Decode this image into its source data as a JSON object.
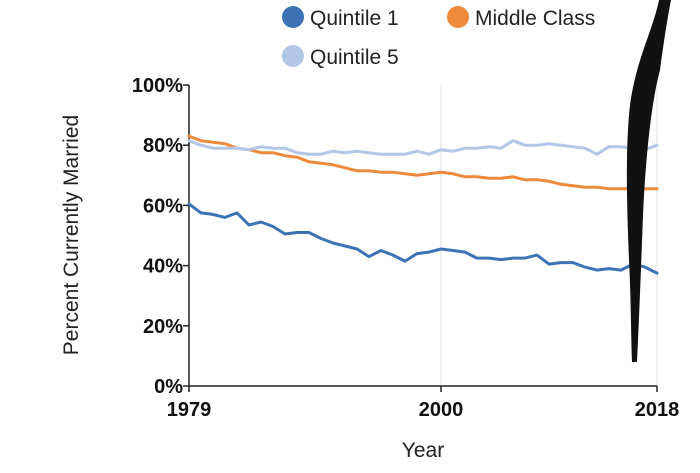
{
  "chart_data": {
    "type": "line",
    "xlabel": "Year",
    "ylabel": "Percent Currently Married",
    "xlim": [
      1979,
      2018
    ],
    "ylim": [
      0,
      100
    ],
    "x_ticks": [
      "1979",
      "2000",
      "2018"
    ],
    "y_ticks": [
      "0%",
      "20%",
      "40%",
      "60%",
      "80%",
      "100%"
    ],
    "grid": "vertical",
    "legend_position": "top",
    "x": [
      1979,
      1980,
      1981,
      1982,
      1983,
      1984,
      1985,
      1986,
      1987,
      1988,
      1989,
      1990,
      1991,
      1992,
      1993,
      1994,
      1995,
      1996,
      1997,
      1998,
      1999,
      2000,
      2001,
      2002,
      2003,
      2004,
      2005,
      2006,
      2007,
      2008,
      2009,
      2010,
      2011,
      2012,
      2013,
      2014,
      2015,
      2016,
      2017,
      2018
    ],
    "series": [
      {
        "name": "Quintile 1",
        "color": "#3d72b4",
        "values": [
          60.5,
          57.5,
          57,
          56,
          57.5,
          53.5,
          54.5,
          53,
          50.5,
          51,
          51,
          49,
          47.5,
          46.5,
          45.5,
          43,
          45,
          43.5,
          41.5,
          44,
          44.5,
          45.5,
          45,
          44.5,
          42.5,
          42.5,
          42,
          42.5,
          42.5,
          43.5,
          40.5,
          41,
          41,
          39.5,
          38.5,
          39,
          38.5,
          40.5,
          39.5,
          37.5
        ]
      },
      {
        "name": "Middle Class",
        "color": "#ee8a3c",
        "values": [
          83,
          81.5,
          81,
          80.5,
          79,
          78.5,
          77.5,
          77.5,
          76.5,
          76,
          74.5,
          74,
          73.5,
          72.5,
          71.5,
          71.5,
          71,
          71,
          70.5,
          70,
          70.5,
          71,
          70.5,
          69.5,
          69.5,
          69,
          69,
          69.5,
          68.5,
          68.5,
          68,
          67,
          66.5,
          66,
          66,
          65.5,
          65.5,
          65.5,
          65.5,
          65.5
        ]
      },
      {
        "name": "Quintile 5",
        "color": "#b3c6e8",
        "values": [
          81.5,
          80,
          79,
          79,
          79,
          78.5,
          79.5,
          79,
          79,
          77.5,
          77,
          77,
          78,
          77.5,
          78,
          77.5,
          77,
          77,
          77,
          78,
          77,
          78.5,
          78,
          79,
          79,
          79.5,
          79,
          81.5,
          80,
          80,
          80.5,
          80,
          79.5,
          79,
          77,
          79.5,
          79.5,
          79,
          78.5,
          80
        ]
      }
    ]
  }
}
